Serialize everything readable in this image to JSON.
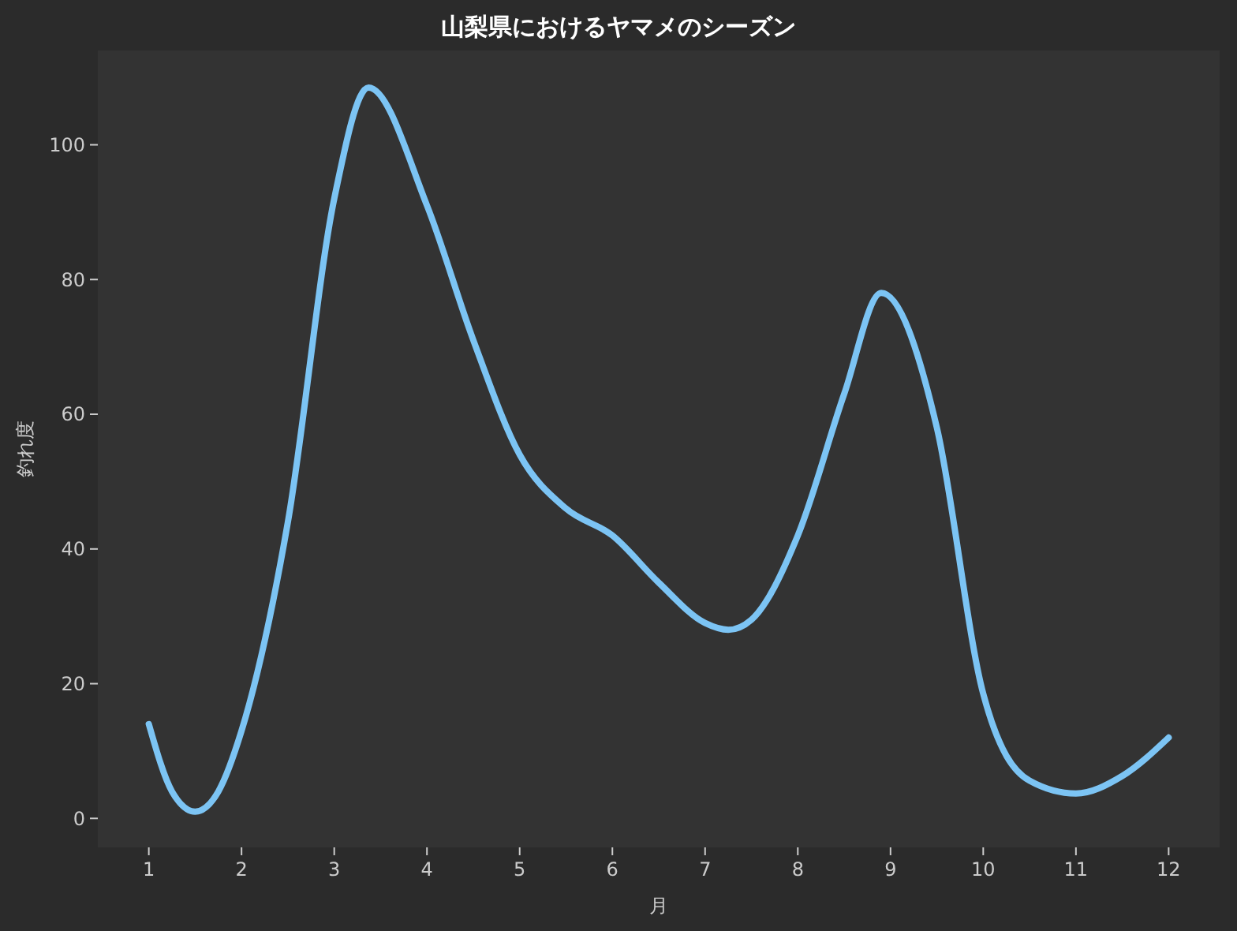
{
  "chart_data": {
    "type": "line",
    "title": "山梨県におけるヤマメのシーズン",
    "xlabel": "月",
    "ylabel": "釣れ度",
    "x": [
      1,
      1.25,
      1.5,
      1.75,
      2,
      2.5,
      3,
      3.37,
      4,
      4.5,
      5,
      5.5,
      6,
      6.5,
      7,
      7.25,
      7.5,
      8,
      8.5,
      8.9,
      9.5,
      10,
      10.5,
      11,
      11.5,
      12
    ],
    "series": [
      {
        "color": "#7cc4f4",
        "values": [
          14,
          4,
          1,
          4,
          13,
          44,
          92,
          108.5,
          91,
          71,
          54,
          46,
          42,
          35,
          29,
          28,
          29.5,
          42,
          63,
          78,
          58,
          18.5,
          5.6,
          3.7,
          6.3,
          12
        ]
      }
    ],
    "xlim": [
      0.45,
      12.55
    ],
    "ylim": [
      -4.3,
      114
    ],
    "xticks": [
      1,
      2,
      3,
      4,
      5,
      6,
      7,
      8,
      9,
      10,
      11,
      12
    ],
    "yticks": [
      0,
      20,
      40,
      60,
      80,
      100
    ],
    "grid": false,
    "marker": "none",
    "line_style": "solid"
  }
}
